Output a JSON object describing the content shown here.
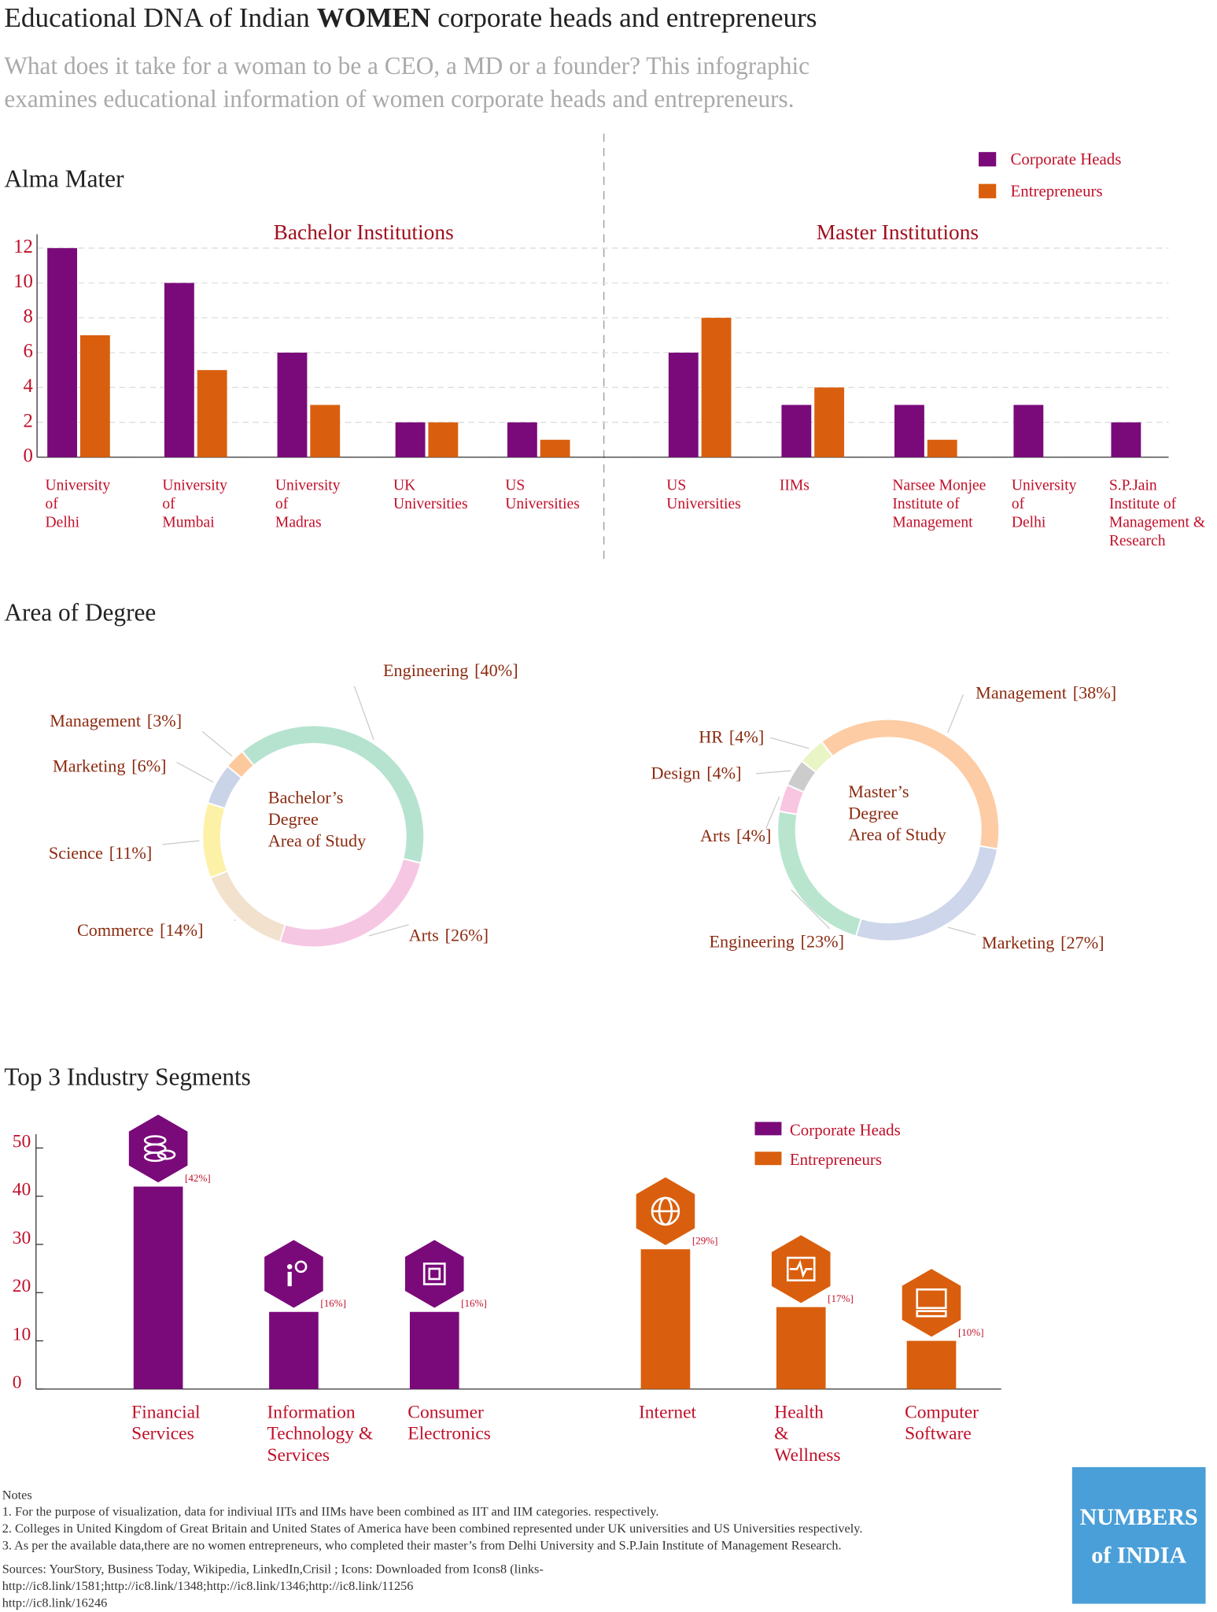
{
  "title": [
    "Educational DNA of Indian ",
    "WOMEN",
    " corporate heads and entrepreneurs"
  ],
  "subtitle": [
    "What does it take for a woman to be a CEO, a MD or a founder? This infographic",
    "examines educational information of women corporate heads and entrepreneurs."
  ],
  "chart_data": [
    {
      "type": "grouped-bar",
      "title": "Alma Mater",
      "series": [
        {
          "name": "Corporate Heads",
          "color": "#7a0a7a"
        },
        {
          "name": "Entrepreneurs",
          "color": "#d95f0e"
        }
      ],
      "ylim": [
        0,
        12.5
      ],
      "yticks": [
        0,
        2,
        4,
        6,
        8,
        10,
        12
      ],
      "grid": true,
      "panels": [
        {
          "title": "Bachelor Institutions",
          "categories": [
            [
              "University",
              "of",
              "Delhi"
            ],
            [
              "University",
              "of",
              "Mumbai"
            ],
            [
              "University",
              "of",
              "Madras"
            ],
            [
              "UK",
              "Universities"
            ],
            [
              "US",
              "Universities"
            ]
          ],
          "values": [
            [
              12,
              10,
              6,
              2,
              2
            ],
            [
              7,
              5,
              3,
              2,
              1
            ]
          ]
        },
        {
          "title": "Master Institutions",
          "categories": [
            [
              "US",
              "Universities"
            ],
            [
              "IIMs"
            ],
            [
              "Narsee Monjee",
              "Institute of",
              "Management"
            ],
            [
              "University",
              "of",
              "Delhi"
            ],
            [
              "S.P.Jain",
              "Institute of",
              "Management &",
              "Research"
            ]
          ],
          "values": [
            [
              6,
              3,
              3,
              3,
              2
            ],
            [
              8,
              4,
              1,
              0,
              0
            ]
          ]
        }
      ]
    },
    {
      "type": "donut",
      "title": "Area of Degree",
      "center_label": [
        "Bachelor’s",
        "Degree",
        "Area of Study"
      ],
      "categories": [
        "Engineering",
        "Arts",
        "Commerce",
        "Science",
        "Marketing",
        "Management"
      ],
      "values": [
        40,
        26,
        14,
        11,
        6,
        3
      ],
      "value_labels": [
        "[40%]",
        "[26%]",
        "[14%]",
        "[11%]",
        "[6%]",
        "[3%]"
      ],
      "colors": [
        "#b6e3cf",
        "#f6c7e3",
        "#f1e1cd",
        "#fdf1a8",
        "#c9d4e9",
        "#fcc99d"
      ]
    },
    {
      "type": "donut",
      "center_label": [
        "Master’s",
        "Degree",
        "Area of Study"
      ],
      "categories": [
        "Management",
        "Marketing",
        "Engineering",
        "Arts",
        "Design",
        "HR"
      ],
      "values": [
        38,
        27,
        23,
        4,
        4,
        4
      ],
      "value_labels": [
        "[38%]",
        "[27%]",
        "[23%]",
        "[4%]",
        "[4%]",
        "[4%]"
      ],
      "colors": [
        "#fdcca4",
        "#cdd6ea",
        "#b9e5cf",
        "#f8c6e1",
        "#cccccc",
        "#e9f5c5"
      ]
    },
    {
      "type": "bar",
      "title": "Top 3 Industry Segments",
      "categories": [
        [
          "Financial",
          "Services"
        ],
        [
          "Information",
          "Technology &",
          "Services"
        ],
        [
          "Consumer",
          "Electronics"
        ],
        [
          "Internet"
        ],
        [
          "Health",
          "&",
          "Wellness"
        ],
        [
          "Computer",
          "Software"
        ]
      ],
      "series": [
        {
          "name": "Corporate Heads",
          "color": "#7a0a7a",
          "values": [
            42,
            16,
            16,
            null,
            null,
            null
          ],
          "value_labels": [
            "[42%]",
            "[16%]",
            "[16%]",
            null,
            null,
            null
          ]
        },
        {
          "name": "Entrepreneurs",
          "color": "#d95f0e",
          "values": [
            null,
            null,
            null,
            29,
            17,
            10
          ],
          "value_labels": [
            null,
            null,
            null,
            "[29%]",
            "[17%]",
            "[10%]"
          ]
        }
      ],
      "ylim": [
        0,
        52
      ],
      "yticks": [
        0,
        10,
        20,
        30,
        40,
        50
      ]
    }
  ],
  "notes": {
    "title": "Notes",
    "items": [
      "1. For the purpose of visualization, data for indiviual IITs and  IIMs have been combined as IIT and IIM categories. respectively.",
      "2. Colleges in United Kingdom of Great Britain and United States of America have been combined represented under UK universities and US Universities respectively.",
      "3. As per the available data,there are no women entrepreneurs, who completed their master’s from Delhi University and S.P.Jain Institute of Management Research."
    ]
  },
  "sources": [
    "Sources: YourStory, Business Today, Wikipedia, LinkedIn,Crisil ; Icons: Downloaded from Icons8 (links-",
    "http://ic8.link/1581;http://ic8.link/1348;http://ic8.link/1346;http://ic8.link/11256",
    "http://ic8.link/16246"
  ],
  "logo": [
    "NUMBERS",
    "of INDIA"
  ]
}
